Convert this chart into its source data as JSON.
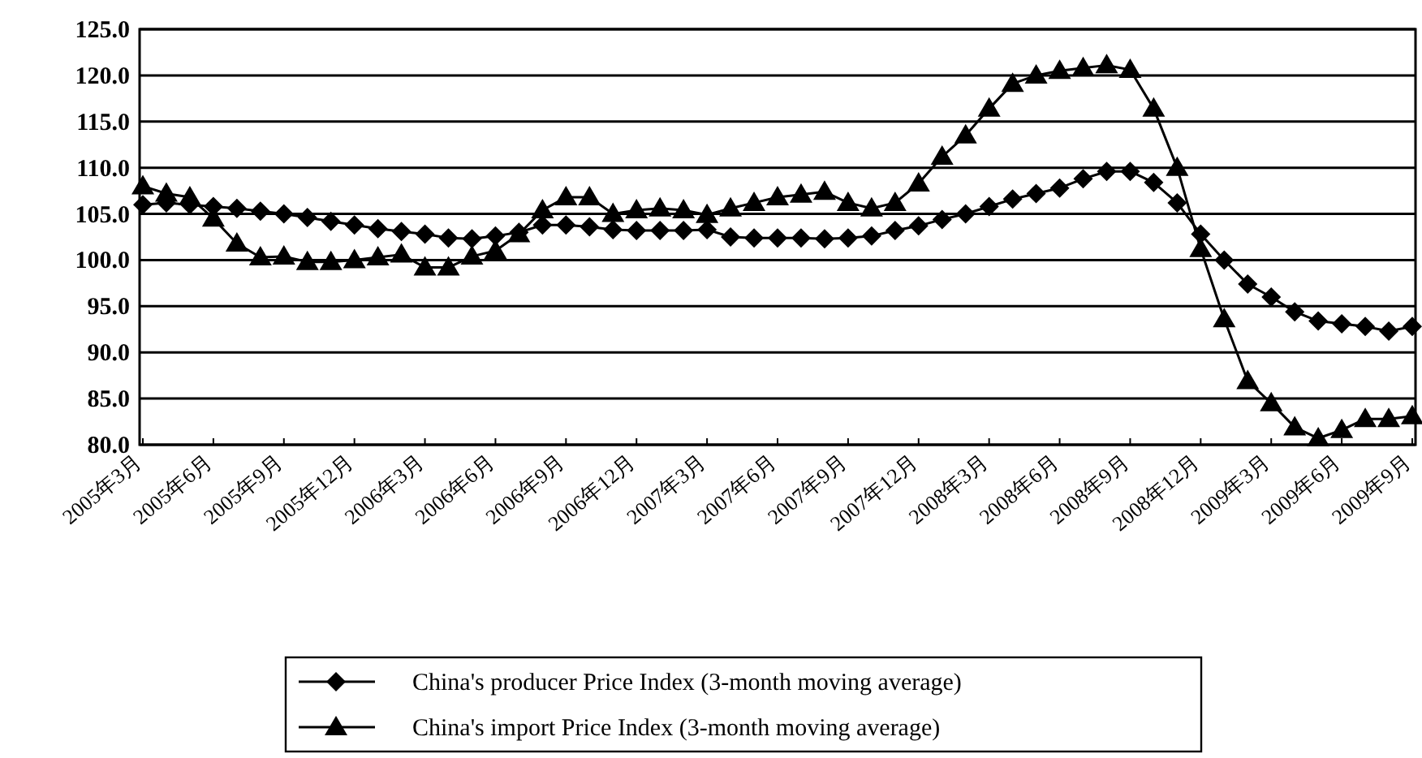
{
  "chart_data": {
    "type": "line",
    "categories": [
      "2005年3月",
      null,
      null,
      "2005年6月",
      null,
      null,
      "2005年9月",
      null,
      null,
      "2005年12月",
      null,
      null,
      "2006年3月",
      null,
      null,
      "2006年6月",
      null,
      null,
      "2006年9月",
      null,
      null,
      "2006年12月",
      null,
      null,
      "2007年3月",
      null,
      null,
      "2007年6月",
      null,
      null,
      "2007年9月",
      null,
      null,
      "2007年12月",
      null,
      null,
      "2008年3月",
      null,
      null,
      "2008年6月",
      null,
      null,
      "2008年9月",
      null,
      null,
      "2008年12月",
      null,
      null,
      "2009年3月",
      null,
      null,
      "2009年6月",
      null,
      null,
      "2009年9月"
    ],
    "series": [
      {
        "name": "China's producer Price Index (3-month moving average)",
        "color": "#000000",
        "marker": "diamond",
        "values": [
          106.0,
          106.2,
          106.0,
          105.8,
          105.6,
          105.3,
          105.0,
          104.6,
          104.2,
          103.8,
          103.4,
          103.1,
          102.8,
          102.4,
          102.3,
          102.6,
          103.0,
          103.8,
          103.8,
          103.6,
          103.3,
          103.2,
          103.2,
          103.2,
          103.3,
          102.5,
          102.4,
          102.4,
          102.4,
          102.3,
          102.4,
          102.6,
          103.2,
          103.7,
          104.4,
          105.0,
          105.8,
          106.6,
          107.2,
          107.8,
          108.8,
          109.6,
          109.6,
          108.4,
          106.2,
          102.8,
          100.0,
          97.4,
          96.0,
          94.4,
          93.4,
          93.1,
          92.8,
          92.3,
          92.8
        ]
      },
      {
        "name": "China's import Price Index (3-month moving average)",
        "color": "#000000",
        "marker": "triangle",
        "values": [
          108.0,
          107.2,
          106.8,
          104.5,
          101.8,
          100.3,
          100.4,
          99.8,
          99.8,
          100.0,
          100.3,
          100.6,
          99.2,
          99.2,
          100.4,
          101.0,
          102.8,
          105.4,
          106.8,
          106.8,
          105.0,
          105.4,
          105.6,
          105.4,
          104.9,
          105.6,
          106.2,
          106.8,
          107.1,
          107.4,
          106.2,
          105.6,
          106.2,
          108.3,
          111.2,
          113.5,
          116.4,
          119.1,
          120.0,
          120.5,
          120.8,
          121.1,
          120.6,
          116.4,
          110.0,
          101.2,
          93.6,
          86.9,
          84.5,
          81.9,
          80.7,
          81.6,
          82.8,
          82.8,
          83.1
        ]
      }
    ],
    "ylim": [
      80,
      125
    ],
    "yticks": [
      {
        "value": 80,
        "label": "80.0"
      },
      {
        "value": 85,
        "label": "85.0"
      },
      {
        "value": 90,
        "label": "90.0"
      },
      {
        "value": 95,
        "label": "95.0"
      },
      {
        "value": 100,
        "label": "100.0"
      },
      {
        "value": 105,
        "label": "105.0"
      },
      {
        "value": 110,
        "label": "110.0"
      },
      {
        "value": 115,
        "label": "115.0"
      },
      {
        "value": 120,
        "label": "120.0"
      },
      {
        "value": 125,
        "label": "125.0"
      }
    ],
    "grid": "y",
    "legend": "bottom",
    "line_style": "solid"
  }
}
